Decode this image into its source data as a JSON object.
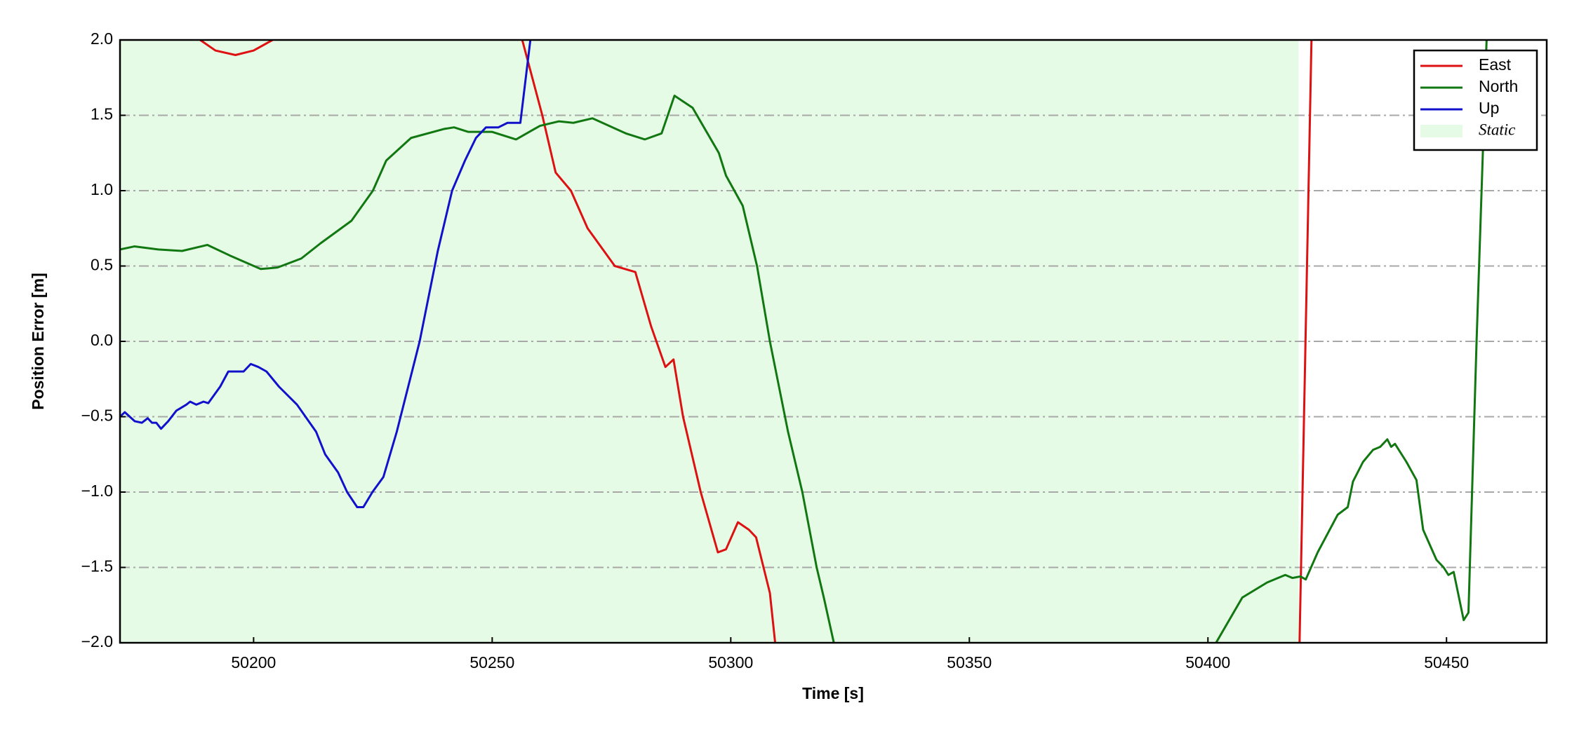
{
  "chart_data": {
    "type": "line",
    "xlabel": "Time [s]",
    "ylabel": "Position Error [m]",
    "xlim": [
      50172,
      50471
    ],
    "ylim": [
      -2,
      2
    ],
    "xticks": [
      50200,
      50250,
      50300,
      50350,
      50400,
      50450
    ],
    "yticks": [
      {
        "value": -2,
        "label": "−2.0"
      },
      {
        "value": -1.5,
        "label": "−1.5"
      },
      {
        "value": -1,
        "label": "−1.0"
      },
      {
        "value": -0.5,
        "label": "−0.5"
      },
      {
        "value": 0,
        "label": "0.0"
      },
      {
        "value": 0.5,
        "label": "0.5"
      },
      {
        "value": 1,
        "label": "1.0"
      },
      {
        "value": 1.5,
        "label": "1.5"
      },
      {
        "value": 2,
        "label": "2.0"
      }
    ],
    "grid": true,
    "legend": "upper right",
    "spans": [
      {
        "name": "Static",
        "color": "#e6fbe6",
        "x": [
          50172,
          50419
        ]
      }
    ],
    "series": [
      {
        "name": "East",
        "color": "#dd1111",
        "x": [
          50188.8,
          50192,
          50196.2,
          50200,
          50204,
          50230,
          50256.3,
          50260.5,
          50263.3,
          50266.5,
          50270,
          50275.7,
          50280,
          50283.3,
          50286.3,
          50288,
          50290,
          50293.7,
          50297.3,
          50299,
          50301.5,
          50303.8,
          50305.3,
          50308.2,
          50309.3,
          50360,
          50419.2,
          50421.7
        ],
        "values": [
          2.0,
          1.93,
          1.9,
          1.93,
          2.0,
          null,
          2.0,
          1.5,
          1.12,
          1.0,
          0.75,
          0.5,
          0.46,
          0.1,
          -0.17,
          -0.12,
          -0.5,
          -1.0,
          -1.4,
          -1.38,
          -1.2,
          -1.25,
          -1.3,
          -1.67,
          -2.0,
          null,
          -2.0,
          2.0
        ]
      },
      {
        "name": "North",
        "color": "#117711",
        "x": [
          50172,
          50175,
          50180,
          50185,
          50190.3,
          50195,
          50201.5,
          50205,
          50210,
          50214,
          50220.5,
          50225,
          50227.8,
          50233,
          50240,
          50242,
          50245,
          50250,
          50255,
          50260,
          50264,
          50267,
          50271,
          50278,
          50282,
          50285.5,
          50288.2,
          50292,
          50297.5,
          50299,
          50302.5,
          50305.5,
          50308.2,
          50312,
          50315,
          50318,
          50319.5,
          50321.6,
          50360,
          50401.7,
          50407.2,
          50412.4,
          50416.2,
          50417.7,
          50419.4,
          50420.5,
          50423,
          50427.2,
          50429.3,
          50430.4,
          50432.5,
          50434.6,
          50436.1,
          50437.6,
          50438.4,
          50439.2,
          50441.6,
          50443.7,
          50445.1,
          50447.9,
          50449.4,
          50450.4,
          50451.5,
          50453.6,
          50454.6,
          50456.3,
          50458.4
        ],
        "values": [
          0.61,
          0.63,
          0.61,
          0.6,
          0.64,
          0.57,
          0.48,
          0.49,
          0.55,
          0.65,
          0.8,
          1.0,
          1.2,
          1.35,
          1.41,
          1.42,
          1.39,
          1.39,
          1.34,
          1.43,
          1.46,
          1.45,
          1.48,
          1.38,
          1.34,
          1.38,
          1.63,
          1.55,
          1.25,
          1.1,
          0.9,
          0.5,
          0.0,
          -0.6,
          -1.0,
          -1.5,
          -1.7,
          -2.0,
          null,
          -2.0,
          -1.7,
          -1.6,
          -1.55,
          -1.57,
          -1.56,
          -1.58,
          -1.4,
          -1.15,
          -1.1,
          -0.93,
          -0.8,
          -0.72,
          -0.7,
          -0.65,
          -0.7,
          -0.68,
          -0.8,
          -0.92,
          -1.25,
          -1.45,
          -1.5,
          -1.55,
          -1.53,
          -1.85,
          -1.8,
          0.0,
          2.0
        ]
      },
      {
        "name": "Up",
        "color": "#1111cc",
        "x": [
          50172,
          50173,
          50175.1,
          50176.6,
          50177.8,
          50178.7,
          50179.6,
          50180.6,
          50182.1,
          50183.8,
          50185.9,
          50186.7,
          50188,
          50189.5,
          50190.5,
          50193,
          50194.7,
          50196.4,
          50197.9,
          50199.4,
          50201,
          50202.7,
          50205.3,
          50209.1,
          50213.1,
          50215,
          50217.7,
          50219.6,
          50221.7,
          50223,
          50224.9,
          50227.2,
          50230,
          50234.8,
          50238.6,
          50241.6,
          50244.3,
          50246.6,
          50248.7,
          50251.3,
          50253.2,
          50255.9,
          50258
        ],
        "values": [
          -0.5,
          -0.47,
          -0.53,
          -0.54,
          -0.51,
          -0.54,
          -0.54,
          -0.58,
          -0.53,
          -0.46,
          -0.42,
          -0.4,
          -0.42,
          -0.4,
          -0.41,
          -0.3,
          -0.2,
          -0.2,
          -0.2,
          -0.15,
          -0.17,
          -0.2,
          -0.3,
          -0.42,
          -0.6,
          -0.75,
          -0.87,
          -1.0,
          -1.1,
          -1.1,
          -1.0,
          -0.9,
          -0.6,
          0.0,
          0.6,
          1.0,
          1.2,
          1.35,
          1.42,
          1.42,
          1.45,
          1.45,
          2.0
        ]
      }
    ]
  }
}
